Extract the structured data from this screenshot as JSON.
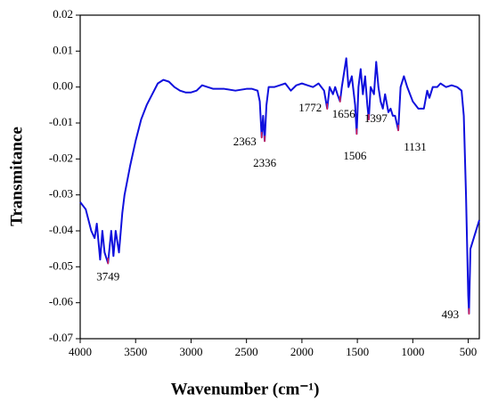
{
  "chart_data": {
    "type": "line",
    "xlabel": "Wavenumber (cm⁻¹)",
    "ylabel": "Transmitance",
    "x": [
      4000,
      3950,
      3900,
      3870,
      3850,
      3820,
      3800,
      3780,
      3749,
      3720,
      3700,
      3680,
      3650,
      3620,
      3600,
      3550,
      3500,
      3450,
      3400,
      3350,
      3300,
      3250,
      3200,
      3150,
      3100,
      3050,
      3000,
      2950,
      2900,
      2850,
      2800,
      2700,
      2600,
      2500,
      2450,
      2400,
      2380,
      2363,
      2350,
      2336,
      2320,
      2300,
      2250,
      2200,
      2150,
      2100,
      2050,
      2000,
      1950,
      1900,
      1850,
      1800,
      1772,
      1750,
      1720,
      1700,
      1680,
      1656,
      1640,
      1600,
      1580,
      1550,
      1520,
      1506,
      1490,
      1470,
      1450,
      1430,
      1410,
      1397,
      1380,
      1350,
      1330,
      1310,
      1290,
      1270,
      1250,
      1220,
      1200,
      1180,
      1160,
      1131,
      1110,
      1080,
      1050,
      1000,
      950,
      900,
      870,
      850,
      820,
      780,
      750,
      700,
      650,
      600,
      560,
      540,
      520,
      500,
      493,
      480,
      450,
      400
    ],
    "series": [
      {
        "name": "spectrum",
        "color": "#1010dd",
        "values": [
          -0.032,
          -0.034,
          -0.04,
          -0.042,
          -0.038,
          -0.048,
          -0.04,
          -0.046,
          -0.049,
          -0.04,
          -0.047,
          -0.04,
          -0.046,
          -0.035,
          -0.03,
          -0.022,
          -0.015,
          -0.009,
          -0.005,
          -0.002,
          0.001,
          0.002,
          0.0015,
          0.0,
          -0.001,
          -0.0015,
          -0.0015,
          -0.001,
          0.0005,
          0.0,
          -0.0005,
          -0.0005,
          -0.001,
          -0.0005,
          -0.0005,
          -0.001,
          -0.004,
          -0.014,
          -0.008,
          -0.015,
          -0.005,
          0.0,
          0.0,
          0.0005,
          0.001,
          -0.001,
          0.0005,
          0.001,
          0.0005,
          0.0,
          0.001,
          -0.001,
          -0.006,
          0.0,
          -0.002,
          0.0,
          -0.002,
          -0.004,
          0.0,
          0.008,
          0.0,
          0.003,
          -0.005,
          -0.013,
          0.0,
          0.005,
          -0.002,
          0.003,
          -0.005,
          -0.009,
          0.0,
          -0.002,
          0.007,
          0.0,
          -0.004,
          -0.006,
          -0.002,
          -0.007,
          -0.006,
          -0.008,
          -0.008,
          -0.012,
          0.0,
          0.003,
          0.0,
          -0.004,
          -0.006,
          -0.006,
          -0.001,
          -0.003,
          0.0,
          0.0,
          0.001,
          0.0,
          0.0005,
          0.0,
          -0.001,
          -0.008,
          -0.03,
          -0.058,
          -0.063,
          -0.045,
          -0.042,
          -0.037
        ]
      }
    ],
    "peaks": [
      3749,
      2363,
      2336,
      1772,
      1656,
      1506,
      1397,
      1131,
      493
    ],
    "peak_color": "#e0204a",
    "xlim": [
      4000,
      400
    ],
    "xticks": [
      4000,
      3500,
      3000,
      2500,
      2000,
      1500,
      1000,
      500
    ],
    "ylim": [
      -0.07,
      0.02
    ],
    "yticks": [
      0.02,
      0.01,
      {
        "value": 0,
        "label": "0.00"
      },
      -0.01,
      -0.02,
      -0.03,
      -0.04,
      -0.05,
      -0.06,
      -0.07
    ]
  }
}
